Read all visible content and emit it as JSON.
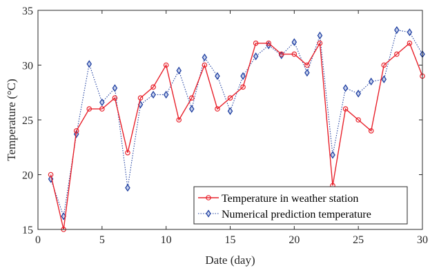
{
  "chart_data": {
    "type": "line",
    "xlabel": "Date (day)",
    "ylabel": "Temperature (°C)",
    "xlim": [
      0,
      30
    ],
    "ylim": [
      15,
      35
    ],
    "xticks": [
      0,
      5,
      10,
      15,
      20,
      25,
      30
    ],
    "yticks": [
      15,
      20,
      25,
      30,
      35
    ],
    "grid": false,
    "legend_position": "bottom-right",
    "x": [
      1,
      2,
      3,
      4,
      5,
      6,
      7,
      8,
      9,
      10,
      11,
      12,
      13,
      14,
      15,
      16,
      17,
      18,
      19,
      20,
      21,
      22,
      23,
      24,
      25,
      26,
      27,
      28,
      29,
      30
    ],
    "series": [
      {
        "name": "Temperature in weather station",
        "color": "#e8202a",
        "line_style": "solid",
        "marker": "circle",
        "values": [
          20,
          15,
          24,
          26,
          26,
          27,
          22,
          27,
          28,
          30,
          25,
          27,
          30,
          26,
          27,
          28,
          32,
          32,
          31,
          31,
          30,
          32,
          19,
          26,
          25,
          24,
          30,
          31,
          32,
          29
        ]
      },
      {
        "name": "Numerical prediction temperature",
        "color": "#1f3fa0",
        "line_style": "dotted",
        "marker": "diamond",
        "values": [
          19.6,
          16.2,
          23.7,
          30.1,
          26.6,
          27.9,
          18.8,
          26.4,
          27.3,
          27.3,
          29.5,
          26.0,
          30.7,
          29.0,
          25.8,
          29.0,
          30.8,
          31.8,
          30.9,
          32.1,
          29.3,
          32.7,
          21.8,
          27.9,
          27.4,
          28.5,
          28.7,
          33.2,
          33.0,
          31.0
        ]
      }
    ]
  }
}
